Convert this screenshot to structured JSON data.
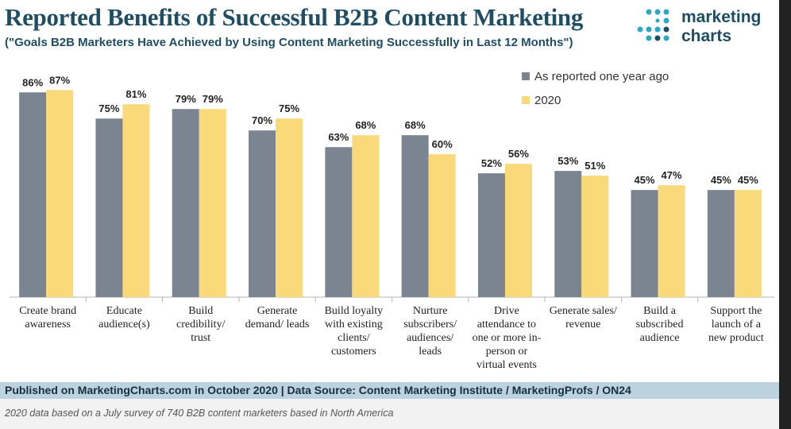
{
  "header": {
    "title": "Reported Benefits of Successful B2B Content Marketing",
    "subtitle": "(\"Goals B2B Marketers Have Achieved by Using Content Marketing Successfully in Last 12 Months\")"
  },
  "logo": {
    "line1": "marketing",
    "line2": "charts"
  },
  "chart_data": {
    "type": "bar",
    "categories": [
      [
        "Create brand",
        "awareness"
      ],
      [
        "Educate",
        "audience(s)"
      ],
      [
        "Build",
        "credibility/",
        "trust"
      ],
      [
        "Generate",
        "demand/ leads"
      ],
      [
        "Build loyalty",
        "with existing",
        "clients/",
        "customers"
      ],
      [
        "Nurture",
        "subscribers/",
        "audiences/",
        "leads"
      ],
      [
        "Drive",
        "attendance to",
        "one or more in-",
        "person or",
        "virtual events"
      ],
      [
        "Generate sales/",
        "revenue"
      ],
      [
        "Build a",
        "subscribed",
        "audience"
      ],
      [
        "Support the",
        "launch of a",
        "new product"
      ]
    ],
    "series": [
      {
        "name": "As reported one year ago",
        "color": "#7a8591",
        "values": [
          86,
          75,
          79,
          70,
          63,
          68,
          52,
          53,
          45,
          45
        ]
      },
      {
        "name": "2020",
        "color": "#fad97a",
        "values": [
          87,
          81,
          79,
          75,
          68,
          60,
          56,
          51,
          47,
          45
        ]
      }
    ],
    "value_suffix": "%",
    "ylim": [
      0,
      100
    ],
    "legend_position": "top-right"
  },
  "footer": {
    "source": "Published on MarketingCharts.com in October 2020 | Data Source: Content Marketing Institute / MarketingProfs / ON24",
    "note": "2020 data based on a July survey of 740 B2B content marketers based in North America"
  }
}
